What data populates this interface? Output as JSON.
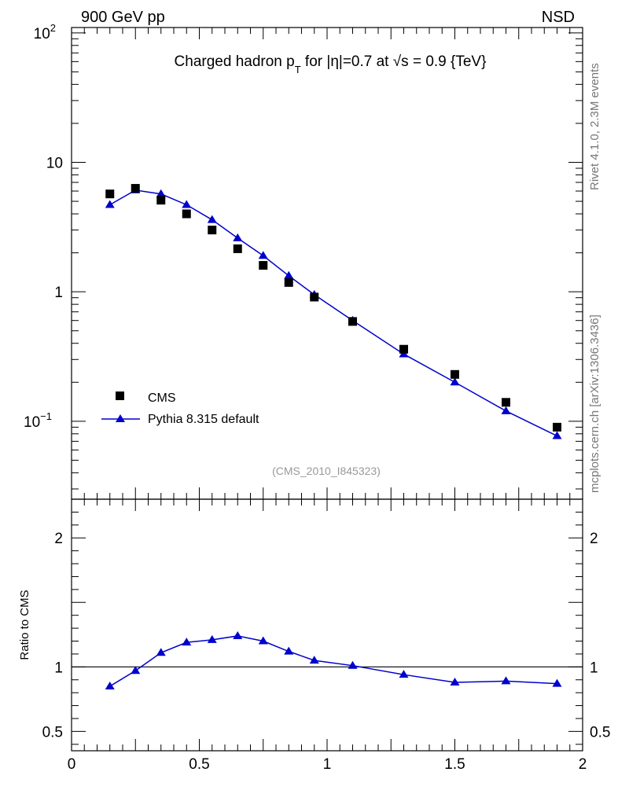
{
  "header": {
    "left_label": "900 GeV pp",
    "right_label": "NSD"
  },
  "side_labels": {
    "rivet": "Rivet 4.1.0,  2.3M events",
    "mcplots": "mcplots.cern.ch [arXiv:1306.3436]"
  },
  "title": {
    "prefix": "Charged hadron p",
    "sub": "T",
    "suffix": " for |η|=0.7 at √s = 0.9 {TeV}"
  },
  "analysis_tag": "(CMS_2010_I845323)",
  "legend": {
    "cms_label": "CMS",
    "pythia_label": "Pythia 8.315 default"
  },
  "colors": {
    "mc": "#0000cc",
    "data": "#000000"
  },
  "chart_data": [
    {
      "type": "scatter",
      "name": "main",
      "yscale": "log",
      "xlim": [
        0,
        2
      ],
      "ylim": [
        0.025,
        110
      ],
      "ytick_labels": [
        {
          "value": 100,
          "base": "10",
          "exp": "2"
        },
        {
          "value": 10,
          "base": "10",
          "exp": ""
        },
        {
          "value": 1,
          "base": "1",
          "exp": ""
        },
        {
          "value": 0.1,
          "base": "10",
          "exp": "−1"
        }
      ],
      "series": [
        {
          "name": "CMS",
          "style": "markers",
          "x": [
            0.15,
            0.25,
            0.35,
            0.45,
            0.55,
            0.65,
            0.75,
            0.85,
            0.95,
            1.1,
            1.3,
            1.5,
            1.7,
            1.9
          ],
          "values": [
            5.7,
            6.3,
            5.1,
            4.0,
            3.0,
            2.15,
            1.6,
            1.18,
            0.91,
            0.59,
            0.36,
            0.23,
            0.14,
            0.09
          ]
        },
        {
          "name": "Pythia 8.315 default",
          "style": "line+triangles",
          "x": [
            0.15,
            0.25,
            0.35,
            0.45,
            0.55,
            0.65,
            0.75,
            0.85,
            0.95,
            1.1,
            1.3,
            1.5,
            1.7,
            1.9
          ],
          "values": [
            4.7,
            6.1,
            5.7,
            4.7,
            3.6,
            2.6,
            1.9,
            1.33,
            0.95,
            0.6,
            0.33,
            0.2,
            0.12,
            0.077
          ]
        }
      ]
    },
    {
      "type": "line",
      "name": "ratio",
      "ylabel": "Ratio to CMS",
      "xlim": [
        0,
        2
      ],
      "ylim": [
        0.35,
        2.3
      ],
      "reference_line": 1,
      "xtick_labels": [
        "0",
        "0.5",
        "1",
        "1.5",
        "2"
      ],
      "ytick_labels": [
        "2",
        "1",
        "0.5"
      ],
      "x": [
        0.15,
        0.25,
        0.35,
        0.45,
        0.55,
        0.65,
        0.75,
        0.85,
        0.95,
        1.1,
        1.3,
        1.5,
        1.7,
        1.9
      ],
      "values": [
        0.85,
        0.97,
        1.11,
        1.19,
        1.21,
        1.24,
        1.2,
        1.12,
        1.05,
        1.01,
        0.94,
        0.88,
        0.89,
        0.87
      ]
    }
  ]
}
